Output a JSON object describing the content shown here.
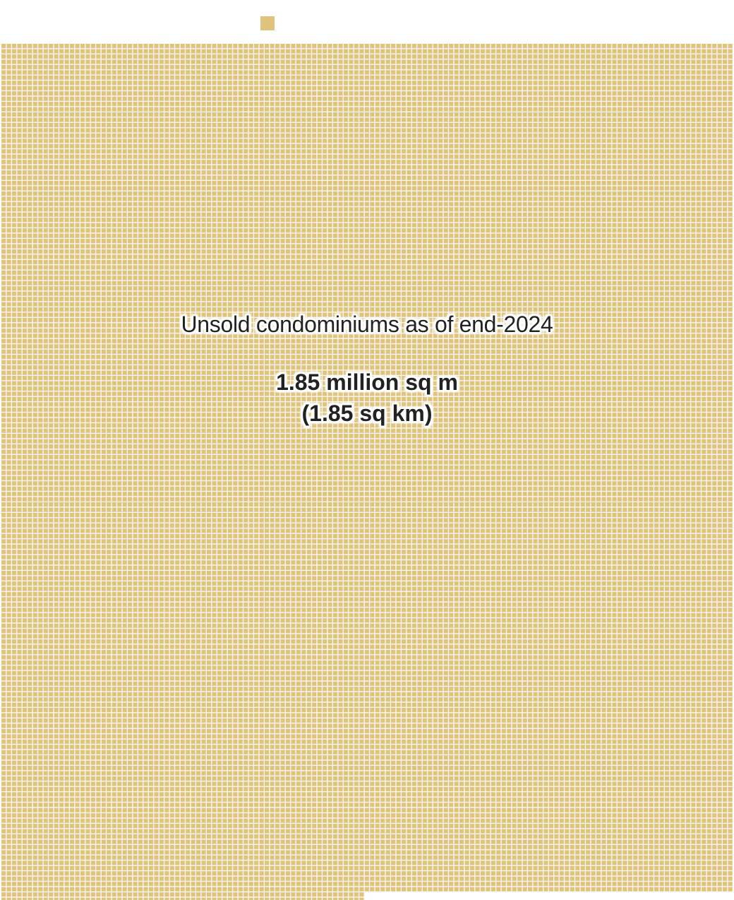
{
  "chart_data": {
    "type": "waffle",
    "legend_note": "",
    "series": [
      {
        "name": "Unsold condominiums as of end-2024",
        "value_label": "1.85 million sq m",
        "value_label_alt": "(1.85 sq km)",
        "value": 1850000,
        "unit": "sq m"
      }
    ],
    "colors": {
      "cell": "#e0c47e",
      "gap": "#ffffff",
      "text": "#222222"
    }
  }
}
